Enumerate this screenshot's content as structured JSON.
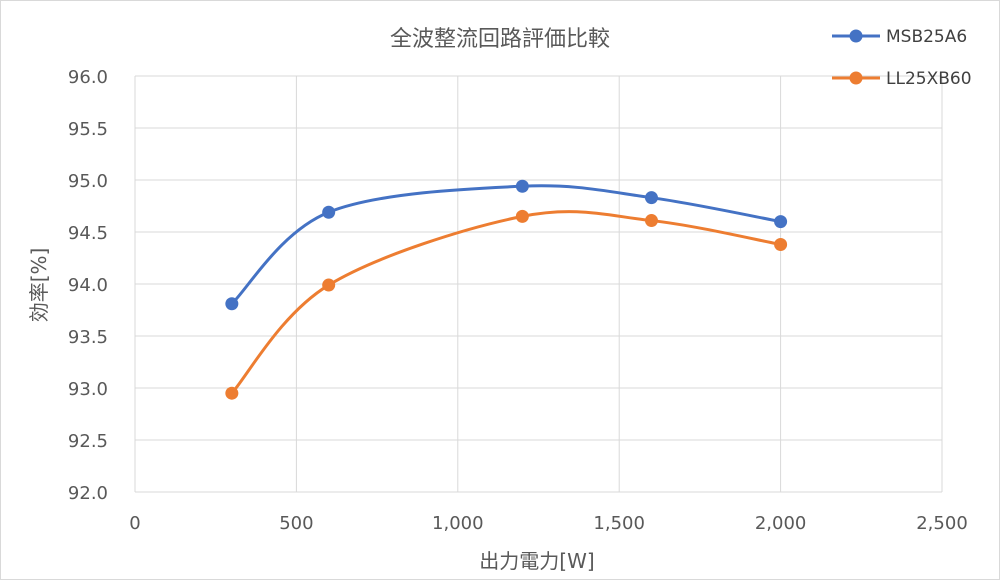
{
  "chart_data": {
    "type": "line",
    "title": "全波整流回路評価比較",
    "xlabel": "出力電力[W]",
    "ylabel": "効率[%]",
    "xlim": [
      0,
      2500
    ],
    "ylim": [
      92.0,
      96.0
    ],
    "x_ticks": [
      0,
      500,
      1000,
      1500,
      2000,
      2500
    ],
    "x_tick_labels": [
      "0",
      "500",
      "1,000",
      "1,500",
      "2,000",
      "2,500"
    ],
    "y_ticks": [
      92.0,
      92.5,
      93.0,
      93.5,
      94.0,
      94.5,
      95.0,
      95.5,
      96.0
    ],
    "y_tick_labels": [
      "92.0",
      "92.5",
      "93.0",
      "93.5",
      "94.0",
      "94.5",
      "95.0",
      "95.5",
      "96.0"
    ],
    "grid": true,
    "legend_position": "top-right",
    "series": [
      {
        "name": "MSB25A6",
        "color": "#4472C4",
        "x": [
          300,
          600,
          1200,
          1600,
          2000
        ],
        "y": [
          93.81,
          94.69,
          94.94,
          94.83,
          94.6
        ]
      },
      {
        "name": "LL25XB60",
        "color": "#ED7D31",
        "x": [
          300,
          600,
          1200,
          1600,
          2000
        ],
        "y": [
          92.95,
          93.99,
          94.65,
          94.61,
          94.38
        ]
      }
    ]
  }
}
